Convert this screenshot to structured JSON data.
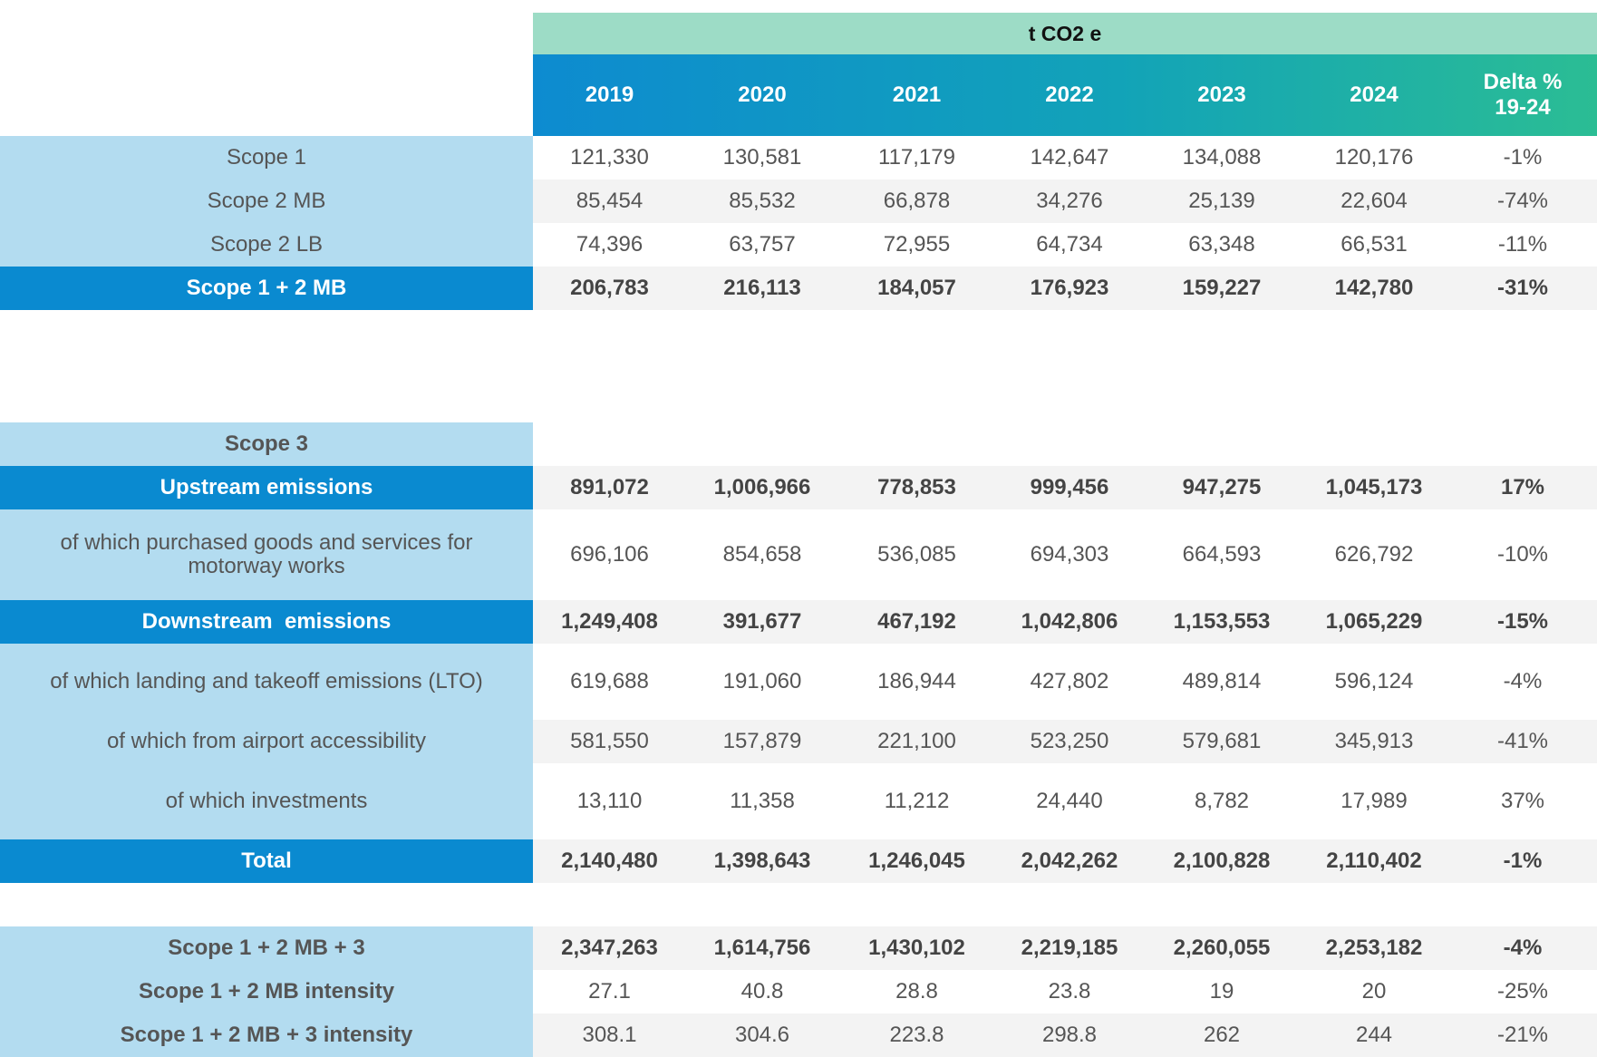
{
  "caption": "t CO2 e",
  "headers": [
    "2019",
    "2020",
    "2021",
    "2022",
    "2023",
    "2024",
    "Delta %\n19-24"
  ],
  "rows": [
    {
      "label": "Scope 1",
      "values": [
        "121,330",
        "130,581",
        "117,179",
        "142,647",
        "134,088",
        "120,176",
        "-1%"
      ]
    },
    {
      "label": "Scope 2 MB",
      "values": [
        "85,454",
        "85,532",
        "66,878",
        "34,276",
        "25,139",
        "22,604",
        "-74%"
      ]
    },
    {
      "label": "Scope 2 LB",
      "values": [
        "74,396",
        "63,757",
        "72,955",
        "64,734",
        "63,348",
        "66,531",
        "-11%"
      ]
    },
    {
      "label": "Scope 1 + 2 MB",
      "values": [
        "206,783",
        "216,113",
        "184,057",
        "176,923",
        "159,227",
        "142,780",
        "-31%"
      ]
    },
    {
      "label": "Scope 3",
      "values": []
    },
    {
      "label": "Upstream emissions",
      "values": [
        "891,072",
        "1,006,966",
        "778,853",
        "999,456",
        "947,275",
        "1,045,173",
        "17%"
      ]
    },
    {
      "label": "of which purchased goods and services for motorway works",
      "values": [
        "696,106",
        "854,658",
        "536,085",
        "694,303",
        "664,593",
        "626,792",
        "-10%"
      ]
    },
    {
      "label": "Downstream  emissions",
      "values": [
        "1,249,408",
        "391,677",
        "467,192",
        "1,042,806",
        "1,153,553",
        "1,065,229",
        "-15%"
      ]
    },
    {
      "label": "of which landing and takeoff emissions (LTO)",
      "values": [
        "619,688",
        "191,060",
        "186,944",
        "427,802",
        "489,814",
        "596,124",
        "-4%"
      ]
    },
    {
      "label": "of which from airport accessibility",
      "values": [
        "581,550",
        "157,879",
        "221,100",
        "523,250",
        "579,681",
        "345,913",
        "-41%"
      ]
    },
    {
      "label": "of which investments",
      "values": [
        "13,110",
        "11,358",
        "11,212",
        "24,440",
        "8,782",
        "17,989",
        "37%"
      ]
    },
    {
      "label": "Total",
      "values": [
        "2,140,480",
        "1,398,643",
        "1,246,045",
        "2,042,262",
        "2,100,828",
        "2,110,402",
        "-1%"
      ]
    },
    {
      "label": "Scope 1 + 2 MB + 3",
      "values": [
        "2,347,263",
        "1,614,756",
        "1,430,102",
        "2,219,185",
        "2,260,055",
        "2,253,182",
        "-4%"
      ]
    },
    {
      "label": "Scope 1 + 2 MB intensity",
      "values": [
        "27.1",
        "40.8",
        "28.8",
        "23.8",
        "19",
        "20",
        "-25%"
      ]
    },
    {
      "label": "Scope 1 + 2 MB + 3 intensity",
      "values": [
        "308.1",
        "304.6",
        "223.8",
        "298.8",
        "262",
        "244",
        "-21%"
      ]
    }
  ],
  "colors": {
    "caption_bg": "#9ddcc6",
    "header_gradient_start": "#0d8bd0",
    "header_gradient_end": "#2bbd94",
    "label_bg": "#b3dcf0",
    "label_dark_bg": "#0a8ad0",
    "stripe_bg": "#f3f3f3"
  }
}
